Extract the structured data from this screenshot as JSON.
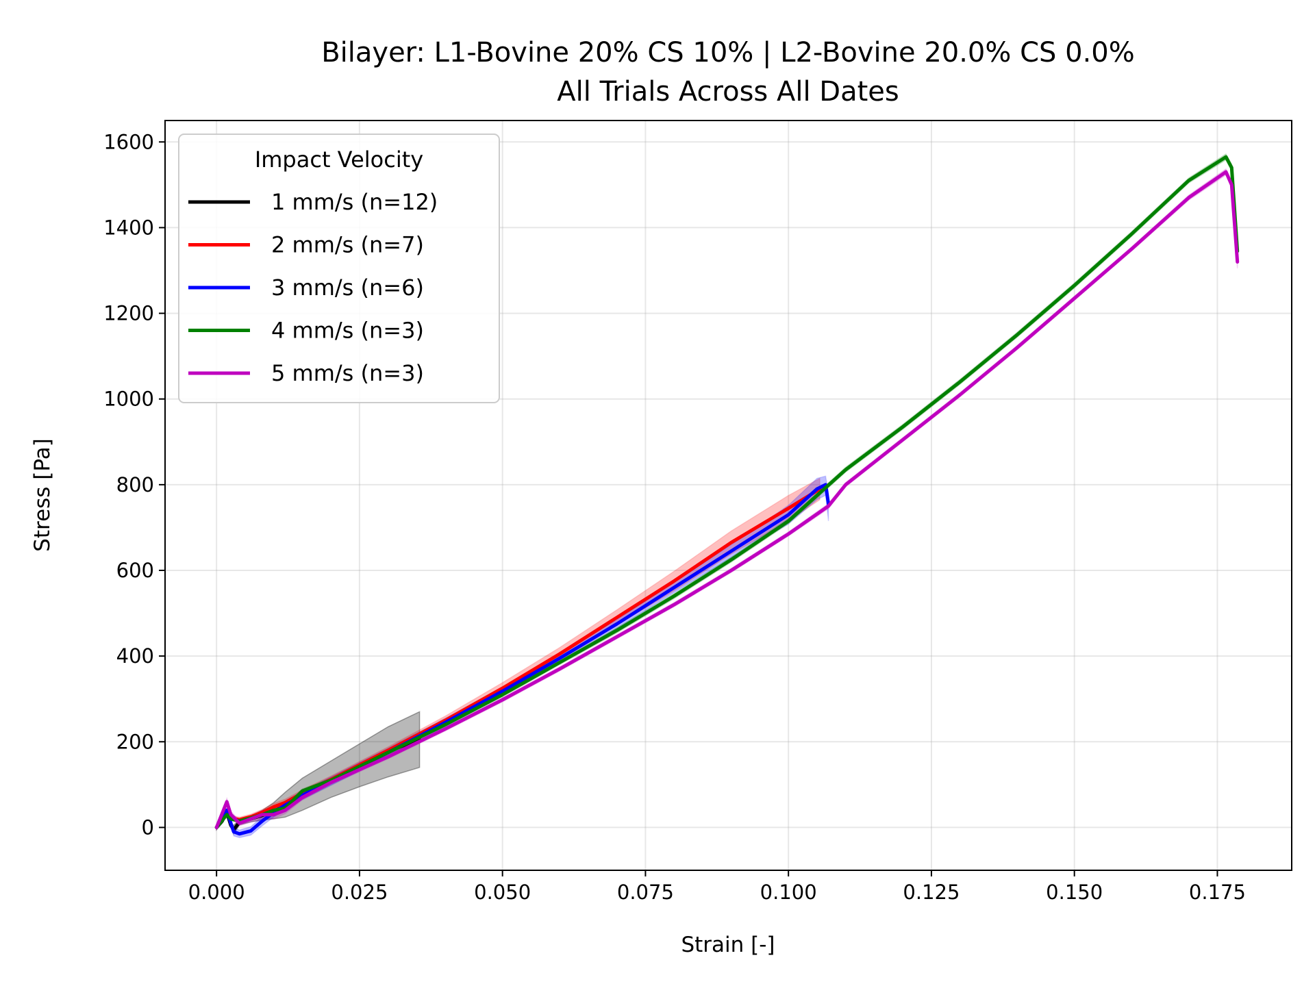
{
  "chart_data": {
    "type": "line",
    "title": "Bilayer: L1-Bovine 20% CS 10% | L2-Bovine 20.0% CS 0.0%",
    "subtitle": "All Trials Across All Dates",
    "xlabel": "Strain [-]",
    "ylabel": "Stress [Pa]",
    "xlim": [
      -0.009,
      0.188
    ],
    "ylim": [
      -100,
      1650
    ],
    "xticks": [
      0.0,
      0.025,
      0.05,
      0.075,
      0.1,
      0.125,
      0.15,
      0.175
    ],
    "xtick_labels": [
      "0.000",
      "0.025",
      "0.050",
      "0.075",
      "0.100",
      "0.125",
      "0.150",
      "0.175"
    ],
    "yticks": [
      0,
      200,
      400,
      600,
      800,
      1000,
      1200,
      1400,
      1600
    ],
    "ytick_labels": [
      "0",
      "200",
      "400",
      "600",
      "800",
      "1000",
      "1200",
      "1400",
      "1600"
    ],
    "grid": true,
    "legend": {
      "title": "Impact Velocity",
      "placement": "top-left"
    },
    "series": [
      {
        "name": "1 mm/s (n=12)",
        "color": "#000000",
        "x": [
          0.0,
          0.001,
          0.0018,
          0.0025,
          0.003,
          0.004,
          0.006,
          0.008,
          0.01,
          0.012,
          0.015,
          0.02,
          0.025,
          0.03,
          0.0355
        ],
        "y": [
          0,
          15,
          35,
          5,
          -5,
          12,
          20,
          28,
          38,
          50,
          75,
          110,
          145,
          178,
          205
        ],
        "band_upper": [
          5,
          20,
          40,
          10,
          5,
          18,
          27,
          40,
          58,
          82,
          115,
          155,
          195,
          235,
          270
        ],
        "band_lower": [
          -5,
          10,
          30,
          0,
          -15,
          6,
          13,
          17,
          20,
          24,
          40,
          70,
          95,
          118,
          140
        ]
      },
      {
        "name": "2 mm/s (n=7)",
        "color": "#ff0000",
        "x": [
          0.0,
          0.0018,
          0.0025,
          0.004,
          0.006,
          0.008,
          0.01,
          0.012,
          0.015,
          0.02,
          0.03,
          0.04,
          0.05,
          0.06,
          0.07,
          0.08,
          0.09,
          0.1,
          0.1055
        ],
        "y": [
          0,
          40,
          22,
          18,
          25,
          35,
          48,
          58,
          80,
          112,
          180,
          250,
          325,
          405,
          490,
          575,
          665,
          745,
          790
        ],
        "band_upper": [
          5,
          45,
          28,
          24,
          31,
          42,
          56,
          66,
          88,
          120,
          188,
          260,
          338,
          420,
          508,
          598,
          692,
          775,
          815
        ],
        "band_lower": [
          -5,
          35,
          16,
          12,
          19,
          28,
          40,
          50,
          72,
          104,
          172,
          240,
          312,
          390,
          472,
          552,
          638,
          715,
          765
        ]
      },
      {
        "name": "3 mm/s (n=6)",
        "color": "#0000ff",
        "x": [
          0.0,
          0.0018,
          0.0025,
          0.003,
          0.004,
          0.006,
          0.008,
          0.01,
          0.012,
          0.015,
          0.02,
          0.03,
          0.04,
          0.05,
          0.06,
          0.07,
          0.08,
          0.09,
          0.1,
          0.105,
          0.1065,
          0.107
        ],
        "y": [
          0,
          40,
          10,
          -10,
          -15,
          -8,
          15,
          35,
          52,
          75,
          108,
          175,
          245,
          318,
          395,
          475,
          560,
          645,
          730,
          790,
          800,
          755
        ],
        "band_upper": [
          5,
          45,
          18,
          0,
          -6,
          2,
          26,
          46,
          62,
          85,
          118,
          185,
          255,
          328,
          405,
          485,
          572,
          660,
          752,
          815,
          820,
          780
        ],
        "band_lower": [
          -5,
          35,
          2,
          -20,
          -24,
          -18,
          4,
          24,
          42,
          65,
          98,
          165,
          235,
          308,
          385,
          465,
          548,
          630,
          708,
          765,
          775,
          715
        ]
      },
      {
        "name": "4 mm/s (n=3)",
        "color": "#008000",
        "x": [
          0.0,
          0.0018,
          0.0025,
          0.004,
          0.006,
          0.008,
          0.01,
          0.012,
          0.015,
          0.02,
          0.03,
          0.04,
          0.05,
          0.06,
          0.07,
          0.08,
          0.09,
          0.1,
          0.11,
          0.12,
          0.13,
          0.14,
          0.15,
          0.16,
          0.17,
          0.1765,
          0.1775,
          0.1785
        ],
        "y": [
          0,
          30,
          20,
          15,
          22,
          30,
          40,
          45,
          85,
          110,
          175,
          240,
          310,
          385,
          460,
          540,
          625,
          715,
          835,
          935,
          1040,
          1150,
          1265,
          1385,
          1510,
          1565,
          1540,
          1345
        ],
        "band_upper": [
          4,
          34,
          24,
          19,
          26,
          34,
          44,
          50,
          90,
          115,
          180,
          245,
          315,
          390,
          466,
          546,
          631,
          721,
          841,
          941,
          1046,
          1156,
          1271,
          1391,
          1516,
          1572,
          1548,
          1360
        ],
        "band_lower": [
          -4,
          26,
          16,
          11,
          18,
          26,
          36,
          40,
          80,
          105,
          170,
          235,
          305,
          380,
          454,
          534,
          619,
          709,
          829,
          929,
          1034,
          1144,
          1259,
          1379,
          1504,
          1558,
          1532,
          1330
        ]
      },
      {
        "name": "5 mm/s (n=3)",
        "color": "#bf00bf",
        "x": [
          0.0,
          0.0018,
          0.0025,
          0.004,
          0.006,
          0.008,
          0.01,
          0.012,
          0.015,
          0.02,
          0.03,
          0.04,
          0.05,
          0.06,
          0.07,
          0.08,
          0.09,
          0.1,
          0.107,
          0.11,
          0.12,
          0.13,
          0.14,
          0.15,
          0.16,
          0.17,
          0.1765,
          0.1775,
          0.1785
        ],
        "y": [
          0,
          60,
          30,
          10,
          20,
          30,
          30,
          40,
          70,
          105,
          165,
          230,
          298,
          370,
          445,
          520,
          600,
          685,
          750,
          800,
          905,
          1010,
          1120,
          1235,
          1350,
          1470,
          1530,
          1500,
          1320
        ],
        "band_upper": [
          5,
          68,
          38,
          16,
          28,
          40,
          40,
          48,
          76,
          110,
          170,
          235,
          303,
          375,
          450,
          525,
          605,
          690,
          756,
          805,
          910,
          1015,
          1125,
          1240,
          1355,
          1476,
          1537,
          1508,
          1335
        ],
        "band_lower": [
          -5,
          52,
          22,
          4,
          12,
          20,
          20,
          32,
          64,
          100,
          160,
          225,
          293,
          365,
          440,
          515,
          595,
          680,
          744,
          795,
          900,
          1005,
          1115,
          1230,
          1345,
          1464,
          1523,
          1492,
          1305
        ]
      }
    ]
  }
}
